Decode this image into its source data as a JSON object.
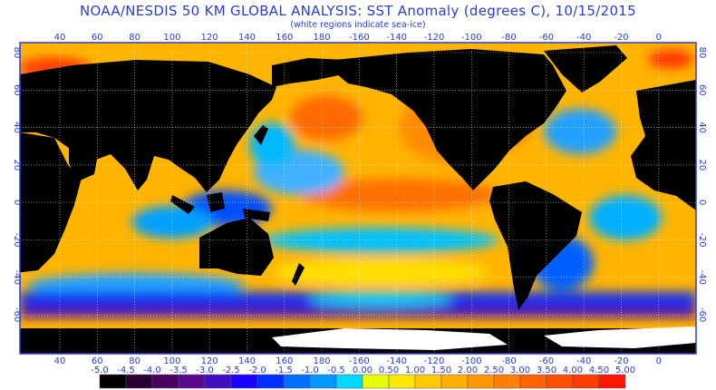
{
  "title": "NOAA/NESDIS 50 KM GLOBAL ANALYSIS: SST Anomaly (degrees C), 10/15/2015",
  "subtitle": "(white regions indicate sea-ice)",
  "axes": {
    "longitude_labels": [
      "40",
      "60",
      "80",
      "100",
      "120",
      "140",
      "160",
      "180",
      "-160",
      "-140",
      "-120",
      "-100",
      "-80",
      "-60",
      "-40",
      "-20",
      "0"
    ],
    "latitude_labels": [
      "80",
      "60",
      "40",
      "20",
      "0",
      "-20",
      "-40",
      "-60"
    ]
  },
  "colorbar": {
    "labels": [
      "-5.0",
      "-4.5",
      "-4.0",
      "-3.5",
      "-3.0",
      "-2.5",
      "-2.0",
      "-1.5",
      "-1.0",
      "-0.5",
      "0.00",
      "0.50",
      "1.00",
      "1.50",
      "2.00",
      "2.50",
      "3.00",
      "3.50",
      "4.00",
      "4.50",
      "5.00"
    ],
    "colors": [
      "#000000",
      "#2a0030",
      "#4a0060",
      "#5a0890",
      "#4010c0",
      "#1a00ff",
      "#0030ff",
      "#0070ff",
      "#0098ff",
      "#00d8ff",
      "#e8ff00",
      "#ffe800",
      "#ffc800",
      "#ffb000",
      "#ff9800",
      "#ff8000",
      "#ff6400",
      "#ff5000",
      "#ff3c00",
      "#ff1800"
    ]
  },
  "colors": {
    "land": "#000000",
    "ice": "#ffffff",
    "axis": "#2a3fd0",
    "ocean_base": "#ffb400"
  }
}
